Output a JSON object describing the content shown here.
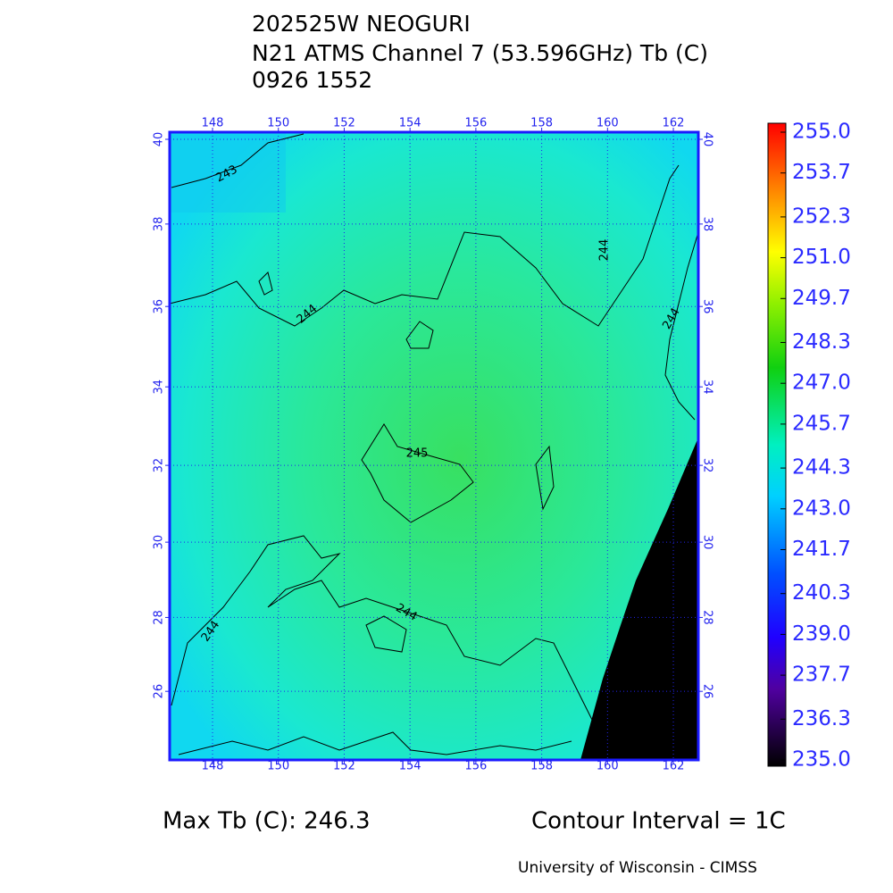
{
  "title": [
    "202525W NEOGURI",
    "N21 ATMS Channel 7 (53.596GHz) Tb (C)",
    "0926 1552"
  ],
  "map": {
    "lon_ticks": [
      148,
      150,
      152,
      154,
      156,
      158,
      160,
      162
    ],
    "lat_ticks": [
      40,
      38,
      36,
      34,
      32,
      30,
      28,
      26
    ],
    "contour_labels": [
      "243",
      "244",
      "244",
      "244",
      "244",
      "245",
      "244"
    ]
  },
  "colorbar": {
    "ticks": [
      {
        "value": 255,
        "label": "255.0"
      },
      {
        "value": 253.7,
        "label": "253.7"
      },
      {
        "value": 252.3,
        "label": "252.3"
      },
      {
        "value": 251,
        "label": "251.0"
      },
      {
        "value": 249.7,
        "label": "249.7"
      },
      {
        "value": 248.3,
        "label": "248.3"
      },
      {
        "value": 247,
        "label": "247.0"
      },
      {
        "value": 245.7,
        "label": "245.7"
      },
      {
        "value": 244.3,
        "label": "244.3"
      },
      {
        "value": 243,
        "label": "243.0"
      },
      {
        "value": 241.7,
        "label": "241.7"
      },
      {
        "value": 240.3,
        "label": "240.3"
      },
      {
        "value": 239,
        "label": "239.0"
      },
      {
        "value": 237.7,
        "label": "237.7"
      },
      {
        "value": 236.3,
        "label": "236.3"
      },
      {
        "value": 235,
        "label": "235.0"
      }
    ]
  },
  "footer": {
    "max_tb": "Max Tb (C): 246.3",
    "contour_interval": "Contour Interval = 1C",
    "credit": "University of Wisconsin - CIMSS"
  }
}
